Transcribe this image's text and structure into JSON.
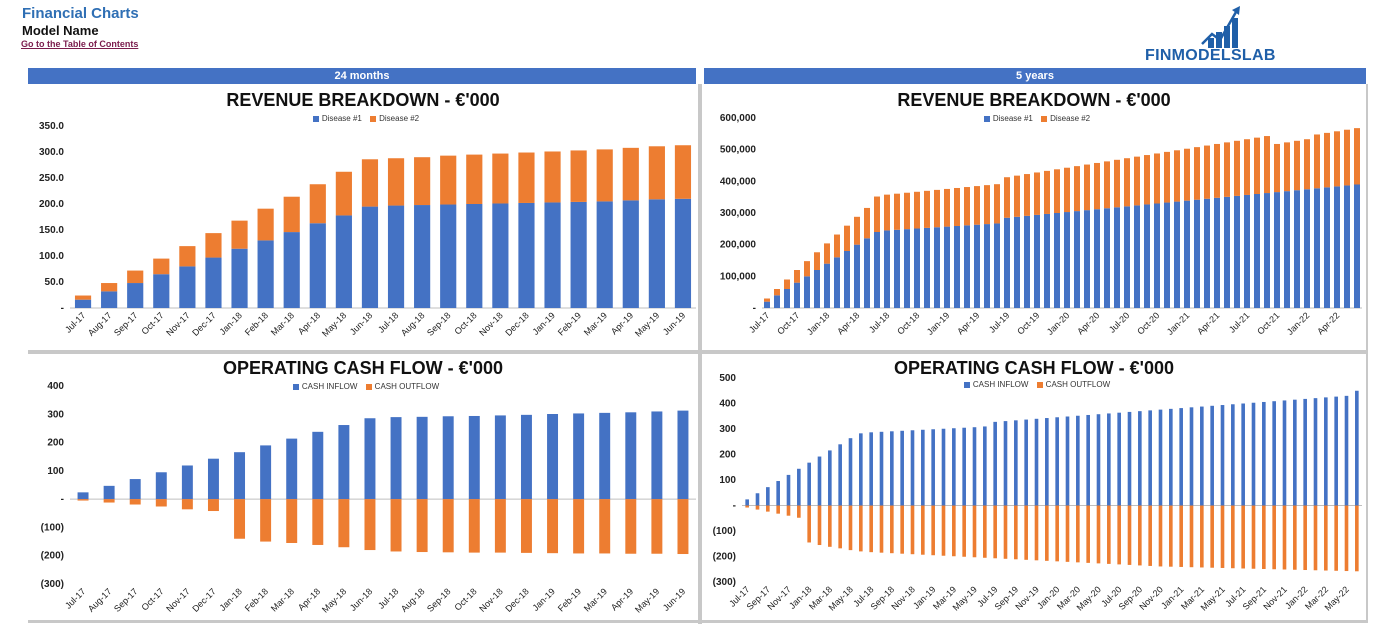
{
  "header": {
    "title": "Financial Charts",
    "model_name": "Model Name",
    "toc_link": "Go to the Table of Contents",
    "logo_text": "FINMODELSLAB"
  },
  "bands": {
    "left": "24 months",
    "right": "5  years"
  },
  "colors": {
    "blue": "#4472c4",
    "orange": "#ed7d31",
    "band": "#4472c4"
  },
  "chart_data": [
    {
      "id": "rev24",
      "type": "bar",
      "stacked": true,
      "title": "REVENUE BREAKDOWN - €'000",
      "categories": [
        "Jul-17",
        "Aug-17",
        "Sep-17",
        "Oct-17",
        "Nov-17",
        "Dec-17",
        "Jan-18",
        "Feb-18",
        "Mar-18",
        "Apr-18",
        "May-18",
        "Jun-18",
        "Jul-18",
        "Aug-18",
        "Sep-18",
        "Oct-18",
        "Nov-18",
        "Dec-18",
        "Jan-19",
        "Feb-19",
        "Mar-19",
        "Apr-19",
        "May-19",
        "Jun-19"
      ],
      "series": [
        {
          "name": "Disease #1",
          "color": "#4472c4",
          "values": [
            16,
            32,
            48,
            65,
            80,
            97,
            114,
            130,
            146,
            163,
            178,
            195,
            197,
            198,
            199,
            200,
            201,
            202,
            203,
            204,
            205,
            207,
            209,
            210
          ]
        },
        {
          "name": "Disease #2",
          "color": "#ed7d31",
          "values": [
            8,
            16,
            24,
            30,
            39,
            47,
            54,
            61,
            68,
            75,
            84,
            91,
            91,
            92,
            94,
            95,
            96,
            97,
            98,
            99,
            100,
            101,
            102,
            103
          ]
        }
      ],
      "ylim": [
        0,
        350
      ],
      "yticks": [
        0,
        50,
        100,
        150,
        200,
        250,
        300,
        350
      ],
      "ytick_labels": [
        "-",
        "50.0",
        "100.0",
        "150.0",
        "200.0",
        "250.0",
        "300.0",
        "350.0"
      ],
      "legend": "top"
    },
    {
      "id": "rev60",
      "type": "bar",
      "stacked": true,
      "title": "REVENUE BREAKDOWN - €'000",
      "categories": [
        "Jul-17",
        "Aug-17",
        "Sep-17",
        "Oct-17",
        "Nov-17",
        "Dec-17",
        "Jan-18",
        "Feb-18",
        "Mar-18",
        "Apr-18",
        "May-18",
        "Jun-18",
        "Jul-18",
        "Aug-18",
        "Sep-18",
        "Oct-18",
        "Nov-18",
        "Dec-18",
        "Jan-19",
        "Feb-19",
        "Mar-19",
        "Apr-19",
        "May-19",
        "Jun-19",
        "Jul-19",
        "Aug-19",
        "Sep-19",
        "Oct-19",
        "Nov-19",
        "Dec-19",
        "Jan-20",
        "Feb-20",
        "Mar-20",
        "Apr-20",
        "May-20",
        "Jun-20",
        "Jul-20",
        "Aug-20",
        "Sep-20",
        "Oct-20",
        "Nov-20",
        "Dec-20",
        "Jan-21",
        "Feb-21",
        "Mar-21",
        "Apr-21",
        "May-21",
        "Jun-21",
        "Jul-21",
        "Aug-21",
        "Sep-21",
        "Oct-21",
        "Nov-21",
        "Dec-21",
        "Jan-22",
        "Feb-22",
        "Mar-22",
        "Apr-22",
        "May-22",
        "Jun-22"
      ],
      "tick_labels_shown": [
        "Jul-17",
        "Oct-17",
        "Jan-18",
        "Apr-18",
        "Jul-18",
        "Oct-18",
        "Jan-19",
        "Apr-19",
        "Jul-19",
        "Oct-19",
        "Jan-20",
        "Apr-20",
        "Jul-20",
        "Oct-20",
        "Jan-21",
        "Apr-21",
        "Jul-21",
        "Oct-21",
        "Jan-22",
        "Apr-22"
      ],
      "series": [
        {
          "name": "Disease #1",
          "color": "#4472c4",
          "values": [
            20,
            40,
            60,
            80,
            100,
            120,
            140,
            160,
            180,
            200,
            220,
            240,
            245,
            247,
            249,
            251,
            253,
            255,
            257,
            259,
            261,
            263,
            265,
            267,
            285,
            288,
            291,
            294,
            297,
            300,
            303,
            306,
            309,
            312,
            315,
            318,
            321,
            324,
            327,
            330,
            333,
            336,
            339,
            342,
            345,
            348,
            351,
            354,
            357,
            360,
            363,
            366,
            369,
            372,
            375,
            378,
            381,
            384,
            387,
            390
          ]
        },
        {
          "name": "Disease #2",
          "color": "#ed7d31",
          "values": [
            10,
            20,
            30,
            40,
            48,
            56,
            64,
            72,
            80,
            88,
            96,
            112,
            113,
            114,
            115,
            116,
            117,
            118,
            119,
            120,
            121,
            122,
            123,
            124,
            128,
            130,
            132,
            134,
            136,
            138,
            140,
            142,
            144,
            146,
            148,
            150,
            152,
            154,
            156,
            158,
            160,
            162,
            164,
            166,
            168,
            170,
            172,
            174,
            176,
            178,
            180,
            152,
            154,
            156,
            158,
            170,
            172,
            174,
            176,
            178
          ]
        }
      ],
      "ylim": [
        0,
        600000
      ],
      "yticks": [
        0,
        100000,
        200000,
        300000,
        400000,
        500000,
        600000
      ],
      "ytick_labels": [
        "-",
        "100,000",
        "200,000",
        "300,000",
        "400,000",
        "500,000",
        "600,000"
      ],
      "value_scale": 1000,
      "legend": "top"
    },
    {
      "id": "ocf24",
      "type": "bar",
      "title": "OPERATING CASH FLOW - €'000",
      "categories": [
        "Jul-17",
        "Aug-17",
        "Sep-17",
        "Oct-17",
        "Nov-17",
        "Dec-17",
        "Jan-18",
        "Feb-18",
        "Mar-18",
        "Apr-18",
        "May-18",
        "Jun-18",
        "Jul-18",
        "Aug-18",
        "Sep-18",
        "Oct-18",
        "Nov-18",
        "Dec-18",
        "Jan-19",
        "Feb-19",
        "Mar-19",
        "Apr-19",
        "May-19",
        "Jun-19"
      ],
      "series": [
        {
          "name": "CASH INFLOW",
          "color": "#4472c4",
          "values": [
            24,
            47,
            71,
            95,
            119,
            143,
            166,
            190,
            214,
            238,
            262,
            286,
            290,
            291,
            293,
            294,
            296,
            298,
            301,
            303,
            305,
            307,
            310,
            313
          ]
        },
        {
          "name": "CASH OUTFLOW",
          "color": "#ed7d31",
          "values": [
            -5,
            -12,
            -19,
            -26,
            -36,
            -42,
            -140,
            -150,
            -155,
            -162,
            -170,
            -180,
            -185,
            -187,
            -188,
            -189,
            -189,
            -190,
            -191,
            -192,
            -192,
            -193,
            -193,
            -194
          ]
        }
      ],
      "ylim": [
        -300,
        400
      ],
      "yticks": [
        -300,
        -200,
        -100,
        0,
        100,
        200,
        300,
        400
      ],
      "ytick_labels": [
        "(300)",
        "(200)",
        "(100)",
        "-",
        "100",
        "200",
        "300",
        "400"
      ],
      "legend": "top"
    },
    {
      "id": "ocf60",
      "type": "bar",
      "title": "OPERATING CASH FLOW - €'000",
      "categories": [
        "Jul-17",
        "Aug-17",
        "Sep-17",
        "Oct-17",
        "Nov-17",
        "Dec-17",
        "Jan-18",
        "Feb-18",
        "Mar-18",
        "Apr-18",
        "May-18",
        "Jun-18",
        "Jul-18",
        "Aug-18",
        "Sep-18",
        "Oct-18",
        "Nov-18",
        "Dec-18",
        "Jan-19",
        "Feb-19",
        "Mar-19",
        "Apr-19",
        "May-19",
        "Jun-19",
        "Jul-19",
        "Aug-19",
        "Sep-19",
        "Oct-19",
        "Nov-19",
        "Dec-19",
        "Jan-20",
        "Feb-20",
        "Mar-20",
        "Apr-20",
        "May-20",
        "Jun-20",
        "Jul-20",
        "Aug-20",
        "Sep-20",
        "Oct-20",
        "Nov-20",
        "Dec-20",
        "Jan-21",
        "Feb-21",
        "Mar-21",
        "Apr-21",
        "May-21",
        "Jun-21",
        "Jul-21",
        "Aug-21",
        "Sep-21",
        "Oct-21",
        "Nov-21",
        "Dec-21",
        "Jan-22",
        "Feb-22",
        "Mar-22",
        "Apr-22",
        "May-22",
        "Jun-22"
      ],
      "tick_labels_shown": [
        "Jul-17",
        "Sep-17",
        "Nov-17",
        "Jan-18",
        "Mar-18",
        "May-18",
        "Jul-18",
        "Sep-18",
        "Nov-18",
        "Jan-19",
        "Mar-19",
        "May-19",
        "Jul-19",
        "Sep-19",
        "Nov-19",
        "Jan-20",
        "Mar-20",
        "May-20",
        "Jul-20",
        "Sep-20",
        "Nov-20",
        "Jan-21",
        "Mar-21",
        "May-21",
        "Jul-21",
        "Sep-21",
        "Nov-21",
        "Jan-22",
        "Mar-22",
        "May-22"
      ],
      "series": [
        {
          "name": "CASH INFLOW",
          "color": "#4472c4",
          "values": [
            24,
            48,
            72,
            96,
            120,
            144,
            168,
            192,
            216,
            240,
            264,
            283,
            287,
            289,
            291,
            293,
            295,
            297,
            299,
            301,
            303,
            305,
            307,
            310,
            328,
            331,
            334,
            337,
            340,
            343,
            346,
            349,
            352,
            355,
            358,
            361,
            364,
            367,
            370,
            373,
            376,
            379,
            382,
            385,
            388,
            391,
            394,
            397,
            400,
            403,
            406,
            409,
            412,
            415,
            418,
            421,
            424,
            427,
            430,
            450
          ]
        },
        {
          "name": "CASH OUTFLOW",
          "color": "#ed7d31",
          "values": [
            -8,
            -16,
            -24,
            -32,
            -40,
            -48,
            -145,
            -155,
            -162,
            -168,
            -175,
            -180,
            -183,
            -185,
            -187,
            -189,
            -191,
            -193,
            -195,
            -197,
            -199,
            -201,
            -203,
            -205,
            -207,
            -209,
            -211,
            -213,
            -215,
            -217,
            -219,
            -221,
            -223,
            -225,
            -227,
            -229,
            -231,
            -233,
            -235,
            -237,
            -239,
            -240,
            -241,
            -242,
            -243,
            -244,
            -245,
            -246,
            -247,
            -248,
            -249,
            -250,
            -251,
            -252,
            -253,
            -254,
            -255,
            -256,
            -257,
            -258
          ]
        }
      ],
      "ylim": [
        -300,
        500
      ],
      "yticks": [
        -300,
        -200,
        -100,
        0,
        100,
        200,
        300,
        400,
        500
      ],
      "ytick_labels": [
        "(300)",
        "(200)",
        "(100)",
        "-",
        "100",
        "200",
        "300",
        "400",
        "500"
      ],
      "legend": "top"
    }
  ]
}
